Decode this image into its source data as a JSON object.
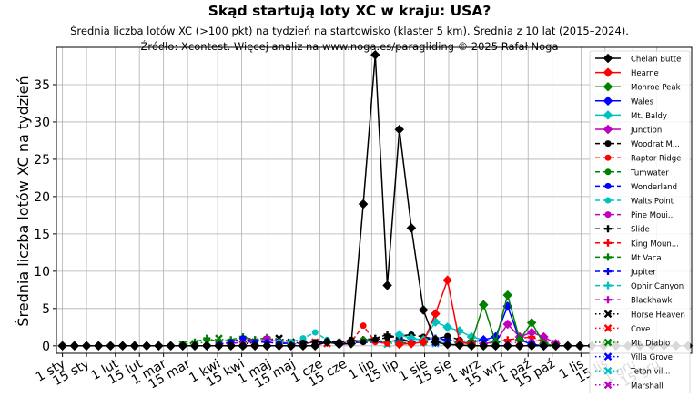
{
  "chart_data": {
    "type": "line",
    "title": "Skąd startują loty XC w kraju: USA?",
    "subtitle": "Średnia liczba lotów XC (>100 pkt) na tydzień na startowisko (klaster 5 km). Średnia z 10 lat (2015–2024).",
    "source": "Źródło: Xcontest. Więcej analiz na www.noga.es/paragliding © 2025 Rafał Noga",
    "xlabel": "",
    "ylabel": "Średnia liczba lotów XC na tydzień",
    "ylim": [
      -1,
      40
    ],
    "y_ticks": [
      0,
      5,
      10,
      15,
      20,
      25,
      30,
      35
    ],
    "x_range": [
      1,
      53
    ],
    "x_ticks": [
      {
        "week": 1,
        "label": "1 sty"
      },
      {
        "week": 3,
        "label": "15 sty"
      },
      {
        "week": 5.4,
        "label": "1 lut"
      },
      {
        "week": 7.4,
        "label": "15 lut"
      },
      {
        "week": 9.4,
        "label": "1 mar"
      },
      {
        "week": 11.4,
        "label": "15 mar"
      },
      {
        "week": 13.9,
        "label": "1 kwi"
      },
      {
        "week": 15.9,
        "label": "15 kwi"
      },
      {
        "week": 18.1,
        "label": "1 maj"
      },
      {
        "week": 20.1,
        "label": "15 maj"
      },
      {
        "week": 22.4,
        "label": "1 cze"
      },
      {
        "week": 24.4,
        "label": "15 cze"
      },
      {
        "week": 26.7,
        "label": "1 lip"
      },
      {
        "week": 28.7,
        "label": "15 lip"
      },
      {
        "week": 31.1,
        "label": "1 sie"
      },
      {
        "week": 33.1,
        "label": "15 sie"
      },
      {
        "week": 35.5,
        "label": "1 wrz"
      },
      {
        "week": 37.5,
        "label": "15 wrz"
      },
      {
        "week": 39.7,
        "label": "1 paź"
      },
      {
        "week": 41.7,
        "label": "15 paź"
      },
      {
        "week": 44.1,
        "label": "1 lis"
      },
      {
        "week": 46.1,
        "label": "15 lis"
      },
      {
        "week": 48.4,
        "label": "1 gru"
      },
      {
        "week": 50.4,
        "label": "15 gru"
      }
    ],
    "grid": true,
    "legend_position": "right",
    "series": [
      {
        "name": "Chelan Butte",
        "color": "#000000",
        "line": "solid",
        "marker": "diamond",
        "points": [
          [
            1,
            0
          ],
          [
            2,
            0
          ],
          [
            3,
            0
          ],
          [
            4,
            0
          ],
          [
            5,
            0
          ],
          [
            6,
            0
          ],
          [
            7,
            0
          ],
          [
            8,
            0
          ],
          [
            9,
            0
          ],
          [
            10,
            0
          ],
          [
            11,
            0
          ],
          [
            12,
            0
          ],
          [
            13,
            0
          ],
          [
            14,
            0
          ],
          [
            15,
            0
          ],
          [
            16,
            0
          ],
          [
            17,
            0
          ],
          [
            18,
            0
          ],
          [
            19,
            0
          ],
          [
            20,
            0
          ],
          [
            21,
            0
          ],
          [
            22,
            0
          ],
          [
            23,
            0.5
          ],
          [
            24,
            0.2
          ],
          [
            25,
            0.3
          ],
          [
            26,
            19
          ],
          [
            27,
            39
          ],
          [
            28,
            8.1
          ],
          [
            29,
            29
          ],
          [
            30,
            15.8
          ],
          [
            31,
            4.8
          ],
          [
            32,
            0.5
          ],
          [
            33,
            0.2
          ],
          [
            34,
            0.1
          ],
          [
            35,
            0
          ],
          [
            36,
            0
          ],
          [
            37,
            0
          ],
          [
            38,
            0
          ],
          [
            39,
            0
          ],
          [
            40,
            0
          ],
          [
            41,
            0
          ],
          [
            42,
            0
          ],
          [
            43,
            0
          ],
          [
            44,
            0
          ],
          [
            45,
            0
          ],
          [
            46,
            0
          ],
          [
            47,
            0
          ],
          [
            48,
            0
          ],
          [
            49,
            0
          ],
          [
            50,
            0
          ],
          [
            51,
            0
          ],
          [
            52,
            0
          ],
          [
            53,
            0
          ]
        ]
      },
      {
        "name": "Hearne",
        "color": "#ff0000",
        "line": "solid",
        "marker": "diamond",
        "points": [
          [
            29,
            0.2
          ],
          [
            30,
            0.3
          ],
          [
            31,
            0.5
          ],
          [
            32,
            4.3
          ],
          [
            33,
            8.8
          ],
          [
            34,
            0.5
          ],
          [
            35,
            0.2
          ]
        ]
      },
      {
        "name": "Monroe Peak",
        "color": "#008000",
        "line": "solid",
        "marker": "diamond",
        "points": [
          [
            34,
            0.3
          ],
          [
            35,
            0.5
          ],
          [
            36,
            5.5
          ],
          [
            37,
            0.5
          ],
          [
            38,
            6.8
          ],
          [
            39,
            0.8
          ],
          [
            40,
            3.1
          ],
          [
            41,
            0.3
          ],
          [
            42,
            0
          ]
        ]
      },
      {
        "name": "Wales",
        "color": "#0000ff",
        "line": "solid",
        "marker": "diamond",
        "points": [
          [
            35,
            0.5
          ],
          [
            36,
            0.8
          ],
          [
            37,
            1.2
          ],
          [
            38,
            5.3
          ],
          [
            39,
            0.8
          ],
          [
            40,
            0.2
          ],
          [
            41,
            0
          ]
        ]
      },
      {
        "name": "Mt. Baldy",
        "color": "#00c0c0",
        "line": "solid",
        "marker": "diamond",
        "points": [
          [
            29,
            1.5
          ],
          [
            30,
            1
          ],
          [
            31,
            0.8
          ],
          [
            32,
            3.2
          ],
          [
            33,
            2.5
          ],
          [
            34,
            2
          ],
          [
            35,
            1.2
          ],
          [
            36,
            0.8
          ],
          [
            37,
            0.5
          ]
        ]
      },
      {
        "name": "Junction",
        "color": "#c000c0",
        "line": "solid",
        "marker": "diamond",
        "points": [
          [
            36,
            0.3
          ],
          [
            37,
            0.5
          ],
          [
            38,
            2.9
          ],
          [
            39,
            1.2
          ],
          [
            40,
            1.8
          ],
          [
            41,
            1.2
          ],
          [
            42,
            0.3
          ]
        ]
      },
      {
        "name": "Woodrat M...",
        "color": "#000000",
        "line": "dashed",
        "marker": "circle",
        "points": [
          [
            21,
            0.4
          ],
          [
            22,
            0.5
          ],
          [
            23,
            0.6
          ],
          [
            24,
            0.5
          ],
          [
            25,
            0.8
          ],
          [
            26,
            0.5
          ],
          [
            27,
            0.8
          ],
          [
            28,
            1.1
          ],
          [
            29,
            1.3
          ],
          [
            30,
            1.5
          ],
          [
            31,
            1.2
          ],
          [
            32,
            0.9
          ],
          [
            33,
            1.3
          ],
          [
            34,
            0.8
          ]
        ]
      },
      {
        "name": "Raptor Ridge",
        "color": "#ff0000",
        "line": "dashed",
        "marker": "circle",
        "points": [
          [
            24,
            0.3
          ],
          [
            25,
            0.5
          ],
          [
            26,
            2.7
          ],
          [
            27,
            0.5
          ],
          [
            28,
            0.3
          ]
        ]
      },
      {
        "name": "Tumwater",
        "color": "#008000",
        "line": "dashed",
        "marker": "circle",
        "points": [
          [
            25,
            0.5
          ],
          [
            26,
            0.8
          ],
          [
            27,
            0.8
          ],
          [
            28,
            0.5
          ],
          [
            29,
            0.5
          ],
          [
            30,
            0.3
          ]
        ]
      },
      {
        "name": "Wonderland",
        "color": "#0000ff",
        "line": "dashed",
        "marker": "circle",
        "points": [
          [
            14,
            0.2
          ],
          [
            15,
            0.5
          ],
          [
            16,
            1
          ],
          [
            17,
            0.5
          ],
          [
            18,
            0.5
          ],
          [
            19,
            0.3
          ],
          [
            28,
            0.5
          ],
          [
            29,
            0.8
          ],
          [
            30,
            0.5
          ]
        ]
      },
      {
        "name": "Walts Point",
        "color": "#00c0c0",
        "line": "dashed",
        "marker": "circle",
        "points": [
          [
            19,
            0.5
          ],
          [
            20,
            0.5
          ],
          [
            21,
            1
          ],
          [
            22,
            1.8
          ],
          [
            23,
            0.8
          ],
          [
            24,
            0.5
          ]
        ]
      },
      {
        "name": "Pine Moui...",
        "color": "#c000c0",
        "line": "dashed",
        "marker": "circle",
        "points": [
          [
            14,
            0.2
          ],
          [
            15,
            0.3
          ],
          [
            16,
            0.5
          ],
          [
            17,
            0.5
          ],
          [
            18,
            1
          ],
          [
            19,
            0.5
          ],
          [
            20,
            0.3
          ]
        ]
      },
      {
        "name": "Slide",
        "color": "#000000",
        "line": "dashed",
        "marker": "plus",
        "points": [
          [
            24,
            0.5
          ],
          [
            25,
            0.5
          ],
          [
            26,
            0.8
          ],
          [
            27,
            1
          ],
          [
            28,
            1.5
          ],
          [
            29,
            1
          ],
          [
            30,
            0.5
          ]
        ]
      },
      {
        "name": "King Moun...",
        "color": "#ff0000",
        "line": "dashed",
        "marker": "plus",
        "points": [
          [
            37,
            0.5
          ],
          [
            38,
            0.8
          ],
          [
            39,
            1
          ],
          [
            40,
            1.2
          ],
          [
            41,
            0.5
          ]
        ]
      },
      {
        "name": "Mt Vaca",
        "color": "#008000",
        "line": "dashed",
        "marker": "plus",
        "points": [
          [
            11,
            0.2
          ],
          [
            12,
            0.5
          ],
          [
            13,
            1
          ],
          [
            14,
            0.5
          ],
          [
            15,
            0.8
          ],
          [
            16,
            1.2
          ],
          [
            17,
            0.8
          ],
          [
            18,
            1.1
          ],
          [
            19,
            0.5
          ]
        ]
      },
      {
        "name": "Jupiter",
        "color": "#0000ff",
        "line": "dashed",
        "marker": "plus",
        "points": [
          [
            30,
            0.5
          ],
          [
            31,
            0.8
          ],
          [
            32,
            1
          ],
          [
            33,
            0.8
          ],
          [
            34,
            0.5
          ]
        ]
      },
      {
        "name": "Ophir Canyon",
        "color": "#00c0c0",
        "line": "dashed",
        "marker": "plus",
        "points": [
          [
            30,
            0.5
          ],
          [
            31,
            1
          ],
          [
            32,
            0.8
          ],
          [
            33,
            0.5
          ],
          [
            34,
            0.3
          ]
        ]
      },
      {
        "name": "Blackhawk",
        "color": "#c000c0",
        "line": "dashed",
        "marker": "plus",
        "points": [
          [
            14,
            0.2
          ],
          [
            15,
            0.5
          ],
          [
            16,
            1
          ],
          [
            17,
            0.8
          ],
          [
            18,
            0.5
          ],
          [
            19,
            0.3
          ]
        ]
      },
      {
        "name": "Horse Heaven",
        "color": "#000000",
        "line": "dotted",
        "marker": "x",
        "points": [
          [
            16,
            0.2
          ],
          [
            17,
            0.5
          ],
          [
            18,
            0.8
          ],
          [
            19,
            1
          ],
          [
            20,
            0.5
          ],
          [
            21,
            0.3
          ]
        ]
      },
      {
        "name": "Cove",
        "color": "#ff0000",
        "line": "dotted",
        "marker": "x",
        "points": [
          [
            20,
            0.2
          ],
          [
            21,
            0.3
          ],
          [
            22,
            0.5
          ],
          [
            23,
            0.3
          ]
        ]
      },
      {
        "name": "Mt. Diablo",
        "color": "#008000",
        "line": "dotted",
        "marker": "x",
        "points": [
          [
            11,
            0.2
          ],
          [
            12,
            0.3
          ],
          [
            13,
            0.5
          ],
          [
            14,
            1
          ],
          [
            15,
            0.5
          ],
          [
            16,
            0.3
          ],
          [
            17,
            0.5
          ]
        ]
      },
      {
        "name": "Villa Grove",
        "color": "#0000ff",
        "line": "dotted",
        "marker": "x",
        "points": [
          [
            32,
            0.5
          ],
          [
            33,
            0.8
          ],
          [
            34,
            0.5
          ],
          [
            35,
            0.8
          ],
          [
            36,
            0.5
          ],
          [
            37,
            0.3
          ]
        ]
      },
      {
        "name": "Teton vil...",
        "color": "#00c0c0",
        "line": "dotted",
        "marker": "x",
        "points": [
          [
            28,
            0.2
          ],
          [
            29,
            0.5
          ],
          [
            30,
            0.8
          ],
          [
            31,
            0.5
          ],
          [
            32,
            0.3
          ]
        ]
      },
      {
        "name": "Marshall",
        "color": "#c000c0",
        "line": "dotted",
        "marker": "x",
        "points": [
          [
            38,
            0.3
          ],
          [
            39,
            0.5
          ],
          [
            40,
            0.8
          ],
          [
            41,
            0.5
          ],
          [
            42,
            0.3
          ]
        ]
      }
    ]
  }
}
